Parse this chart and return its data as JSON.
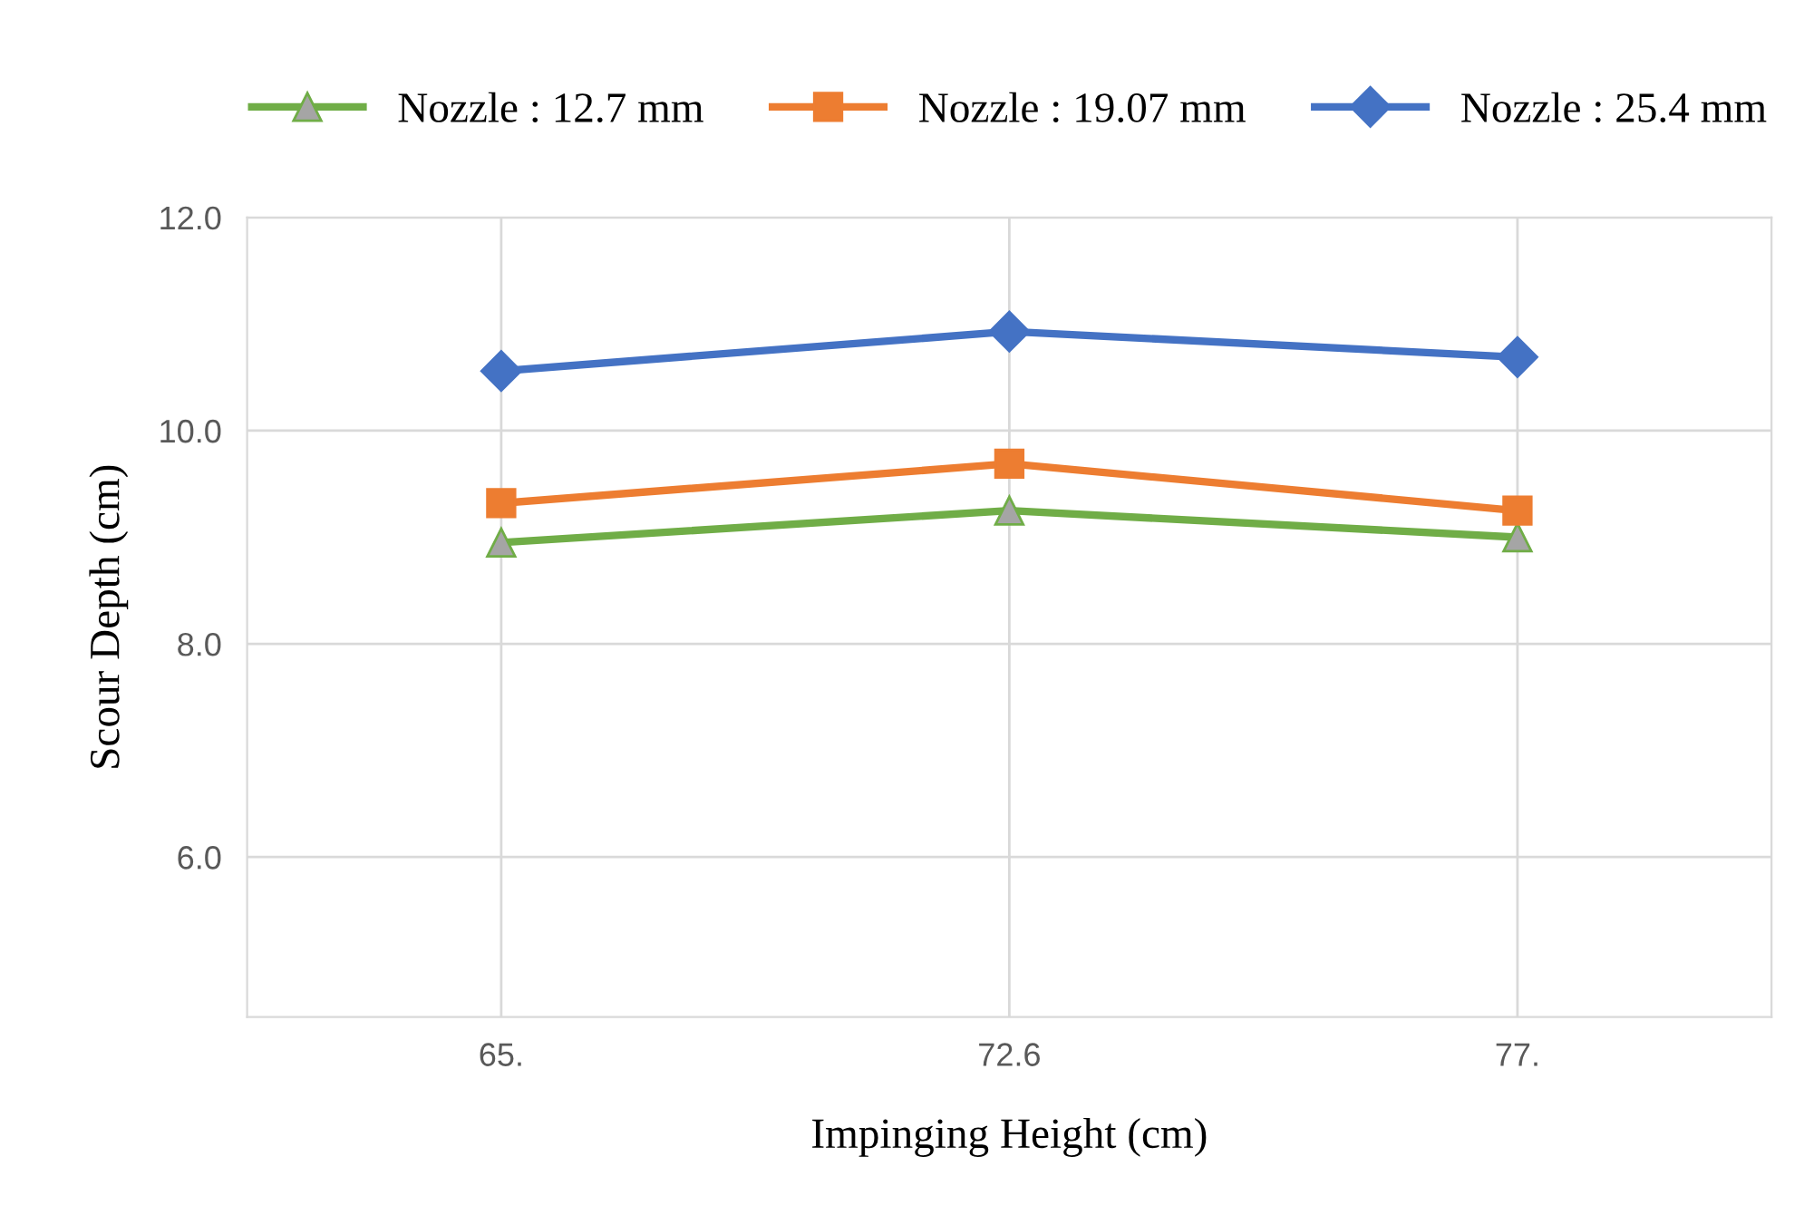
{
  "chart_data": {
    "type": "line",
    "xlabel": "Impinging Height (cm)",
    "ylabel": "Scour Depth (cm)",
    "categories": [
      "65.",
      "72.6",
      "77."
    ],
    "series": [
      {
        "name": "Nozzle : 12.7 mm",
        "color": "#70ad47",
        "marker": "triangle",
        "values": [
          8.95,
          9.25,
          9.0
        ]
      },
      {
        "name": "Nozzle : 19.07 mm",
        "color": "#ed7d31",
        "marker": "square",
        "values": [
          9.32,
          9.69,
          9.25
        ]
      },
      {
        "name": "Nozzle : 25.4 mm",
        "color": "#4472c4",
        "marker": "diamond",
        "values": [
          10.56,
          10.93,
          10.69
        ]
      }
    ],
    "ylim": [
      4.5,
      12.0
    ],
    "yticks": [
      {
        "value": 6,
        "label": "6.0"
      },
      {
        "value": 8,
        "label": "8.0"
      },
      {
        "value": 10,
        "label": "10.0"
      },
      {
        "value": 12,
        "label": "12.0"
      }
    ],
    "grid": true,
    "legend": "top",
    "line_style": "solid"
  }
}
